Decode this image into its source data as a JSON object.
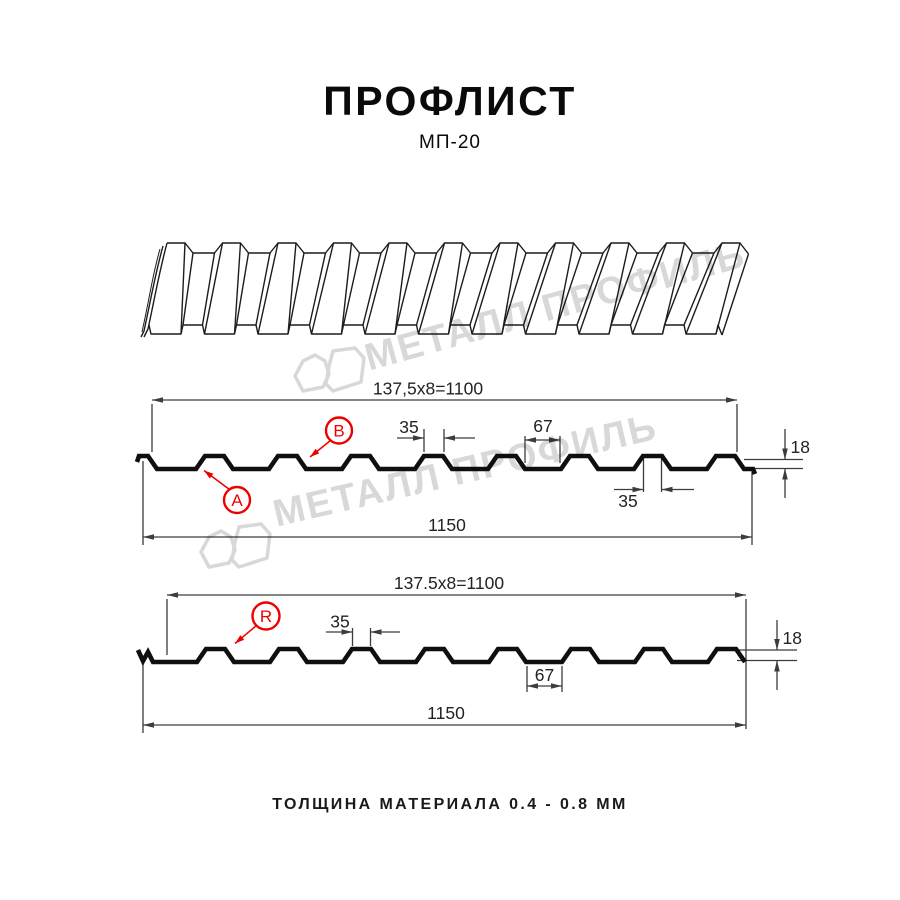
{
  "header": {
    "title": "ПРОФЛИСТ",
    "subtitle": "МП-20"
  },
  "watermark": {
    "text": "МЕТАЛЛ ПРОФИЛЬ"
  },
  "profile_top": {
    "pitch_dim": "137,5x8=1100",
    "overall_dim": "1150",
    "crest_dim": "35",
    "slot_dim": "35",
    "valley_dim": "67",
    "height_dim": "18",
    "label_a": "A",
    "label_b": "B"
  },
  "profile_bottom": {
    "pitch_dim": "137.5x8=1100",
    "overall_dim": "1150",
    "crest_dim": "35",
    "valley_dim": "67",
    "height_dim": "18",
    "label_r": "R"
  },
  "footer": {
    "thickness_note": "ТОЛЩИНА МАТЕРИАЛА 0.4 - 0.8 ММ"
  },
  "colors": {
    "accent_red": "#ee0000",
    "watermark_gray": "#d8d8d8",
    "dimension_line": "#3c3c3c",
    "profile_line": "#0f0f0f"
  }
}
